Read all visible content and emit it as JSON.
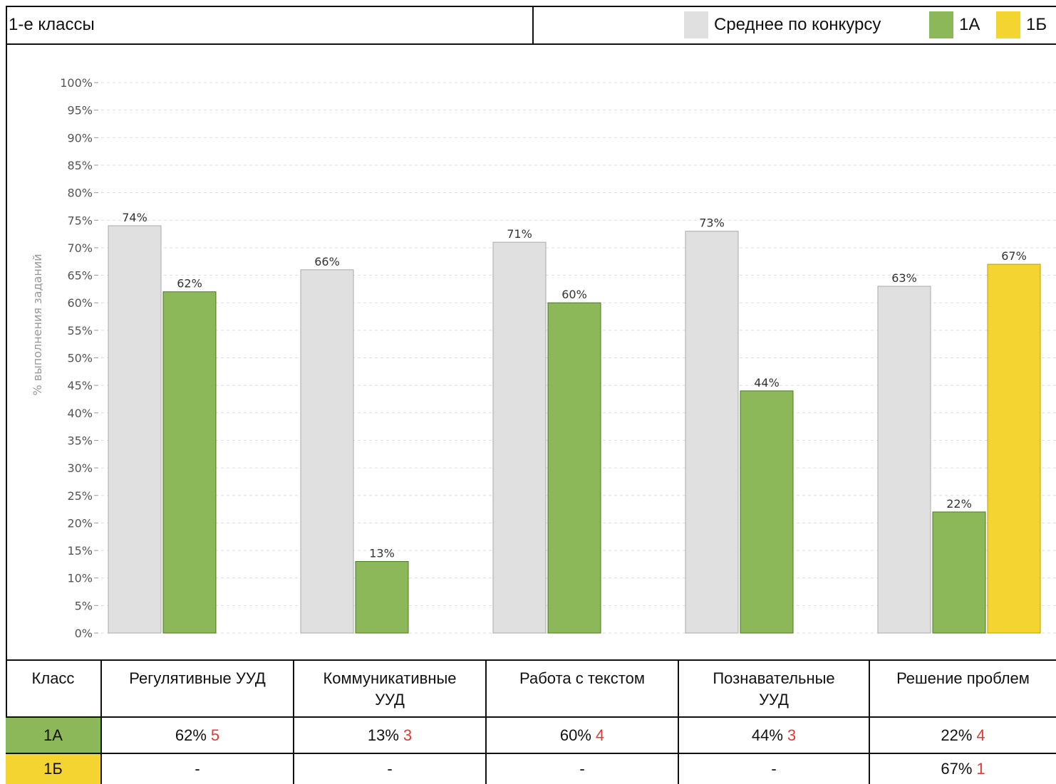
{
  "header": {
    "title": "1-е классы",
    "legend": [
      {
        "label": "Среднее по конкурсу",
        "color": "#e0e0e0"
      },
      {
        "label": "1А",
        "color": "#8db85a"
      },
      {
        "label": "1Б",
        "color": "#f4d430"
      }
    ]
  },
  "chart_data": {
    "type": "bar",
    "title": "1-е классы",
    "ylabel": "% выполнения заданий",
    "ylim": [
      0,
      100
    ],
    "ytick_step": 5,
    "grid": true,
    "legend_position": "top-right",
    "categories": [
      "Регулятивные УУД",
      "Коммуникативные УУД",
      "Работа с текстом",
      "Познавательные УУД",
      "Решение проблем"
    ],
    "series": [
      {
        "name": "Среднее по конкурсу",
        "color": "#e0e0e0",
        "stroke": "#aaaaaa",
        "values": [
          74,
          66,
          71,
          73,
          63
        ]
      },
      {
        "name": "1А",
        "color": "#8db85a",
        "stroke": "#4a7a1e",
        "values": [
          62,
          13,
          60,
          44,
          22
        ]
      },
      {
        "name": "1Б",
        "color": "#f4d430",
        "stroke": "#b8a000",
        "values": [
          null,
          null,
          null,
          null,
          67
        ]
      }
    ]
  },
  "table": {
    "header": [
      "Класс",
      "Регулятивные УУД",
      "Коммуникативные УУД",
      "Работа с текстом",
      "Познавательные УУД",
      "Решение проблем"
    ],
    "rows": [
      {
        "class": "1А",
        "color": "#8db85a",
        "cells": [
          {
            "value": "62%",
            "score": "5"
          },
          {
            "value": "13%",
            "score": "3"
          },
          {
            "value": "60%",
            "score": "4"
          },
          {
            "value": "44%",
            "score": "3"
          },
          {
            "value": "22%",
            "score": "4"
          }
        ]
      },
      {
        "class": "1Б",
        "color": "#f4d430",
        "cells": [
          {
            "value": "-",
            "score": ""
          },
          {
            "value": "-",
            "score": ""
          },
          {
            "value": "-",
            "score": ""
          },
          {
            "value": "-",
            "score": ""
          },
          {
            "value": "67%",
            "score": "1"
          }
        ]
      }
    ]
  }
}
